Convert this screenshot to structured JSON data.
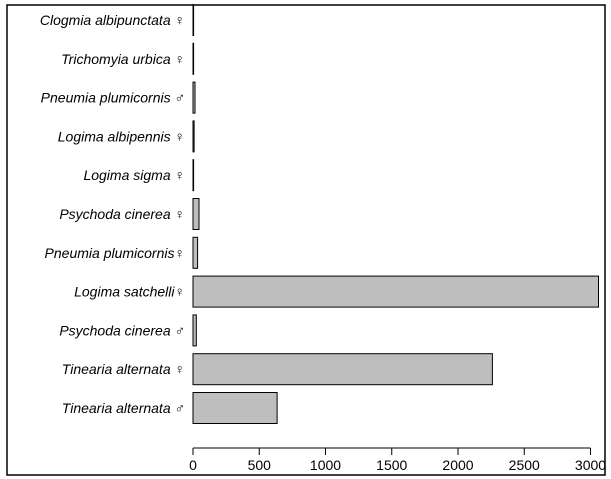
{
  "chart_data": {
    "type": "bar",
    "orientation": "horizontal",
    "categories": [
      "Clogmia albipunctata ♀",
      "Trichomyia urbica ♀",
      "Pneumia plumicornis ♂",
      "Logima albipennis ♀",
      "Logima sigma ♀",
      "Psychoda cinerea ♀",
      "Pneumia plumicornis♀",
      "Logima satchelli♀",
      "Psychoda cinerea ♂",
      "Tinearia alternata ♀",
      "Tinearia alternata ♂"
    ],
    "values": [
      2,
      2,
      15,
      8,
      3,
      45,
      35,
      3060,
      25,
      2260,
      635
    ],
    "xlim": [
      0,
      3000
    ],
    "x_ticks": [
      0,
      500,
      1000,
      1500,
      2000,
      2500,
      3000
    ],
    "x_tick_labels": [
      "0",
      "500",
      "1000",
      "1500",
      "2000",
      "2500",
      "3000"
    ],
    "title": "",
    "xlabel": "",
    "ylabel": "",
    "grid": false,
    "legend": "none",
    "bar_color": "#bebebe",
    "bar_edge_color": "#000000"
  }
}
